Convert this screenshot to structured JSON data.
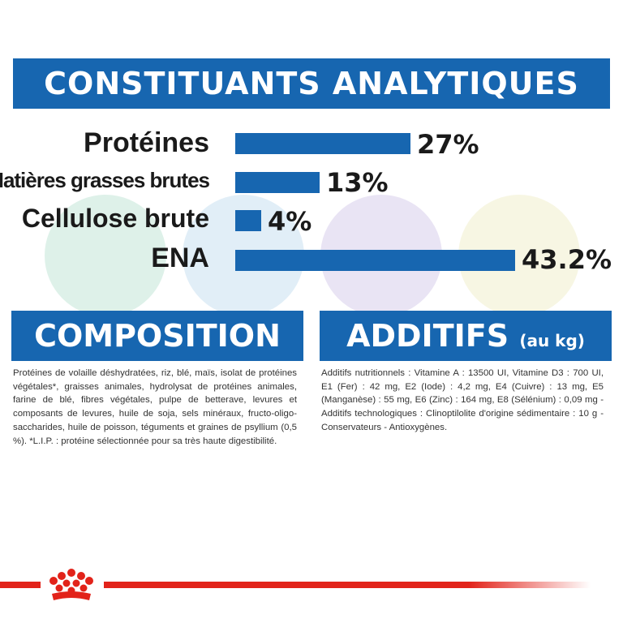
{
  "header": {
    "title": "CONSTITUANTS ANALYTIQUES"
  },
  "chart_data": {
    "type": "bar",
    "title": "CONSTITUANTS ANALYTIQUES",
    "categories": [
      "Protéines",
      "Matières grasses brutes",
      "Cellulose brute",
      "ENA"
    ],
    "values": [
      27,
      13,
      4,
      43.2
    ],
    "value_labels": [
      "27%",
      "13%",
      "4%",
      "43.2%"
    ],
    "bar_color": "#1766b0"
  },
  "composition": {
    "title": "COMPOSITION",
    "text": "Protéines de volaille déshydratées, riz, blé, maïs, isolat de protéines végétales*, graisses animales, hydrolysat de protéines animales, farine de blé, fibres végétales, pulpe de betterave, levures et composants de levures, huile de soja, sels minéraux, fructo-oligo-saccharides, huile de poisson, téguments et graines de psyllium (0,5 %). *L.I.P. : protéine sélectionnée pour sa très haute digestibilité."
  },
  "additifs": {
    "title": "ADDITIFS",
    "subtitle": "(au kg)",
    "text": "Additifs nutritionnels : Vitamine A : 13500 UI, Vitamine D3 : 700 UI, E1 (Fer) : 42 mg, E2 (Iode) : 4,2 mg, E4 (Cuivre) : 13 mg, E5 (Manganèse) : 55 mg, E6 (Zinc) : 164 mg, E8 (Sélénium) : 0,09 mg - Additifs technologiques : Clinoptilolite d'origine sédimentaire : 10 g - Conservateurs - Antioxygènes."
  },
  "colors": {
    "brand_blue": "#1766b0",
    "brand_red": "#e2231a"
  },
  "logo": {
    "icon": "crown-icon"
  }
}
